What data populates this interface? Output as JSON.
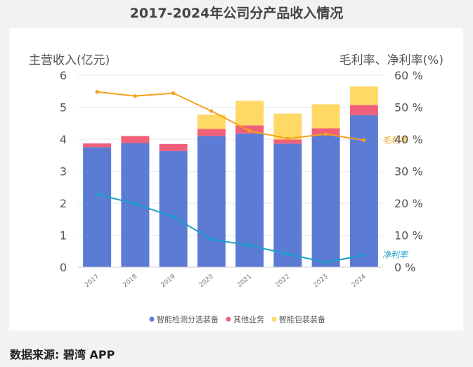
{
  "title": "2017-2024年公司分产品收入情况",
  "source": "数据来源: 碧湾 APP",
  "chart_data": {
    "type": "bar",
    "stacked": true,
    "categories": [
      "2017",
      "2018",
      "2019",
      "2020",
      "2021",
      "2022",
      "2023",
      "2024"
    ],
    "ylabel": "主营收入(亿元)",
    "y2label": "毛利率、净利率(%)",
    "ylim": [
      0,
      6
    ],
    "yticks": [
      "0",
      "1",
      "2",
      "3",
      "4",
      "5",
      "6"
    ],
    "y2lim": [
      0,
      60
    ],
    "y2ticks": [
      "0 %",
      "10 %",
      "20 %",
      "30 %",
      "40 %",
      "50 %",
      "60 %"
    ],
    "series": [
      {
        "name": "智能检测分选装备",
        "color": "#5b7bd5",
        "values": [
          3.75,
          3.88,
          3.63,
          4.1,
          4.18,
          3.86,
          4.12,
          4.75
        ]
      },
      {
        "name": "其他业务",
        "color": "#f0607a",
        "values": [
          0.12,
          0.22,
          0.22,
          0.22,
          0.25,
          0.13,
          0.22,
          0.32
        ]
      },
      {
        "name": "智能包装装备",
        "color": "#ffd966",
        "values": [
          0,
          0,
          0,
          0.45,
          0.77,
          0.81,
          0.75,
          0.58
        ]
      }
    ],
    "lines": [
      {
        "name": "毛利率",
        "color": "#f5a11c",
        "values": [
          54.8,
          53.5,
          54.4,
          48.8,
          42.6,
          40.2,
          41.6,
          39.7
        ]
      },
      {
        "name": "净利率",
        "color": "#1aa3c8",
        "values": [
          22.8,
          19.8,
          15.7,
          8.7,
          6.8,
          4.1,
          1.5,
          3.8
        ]
      }
    ],
    "grid": true,
    "legend": "bottom-center"
  }
}
